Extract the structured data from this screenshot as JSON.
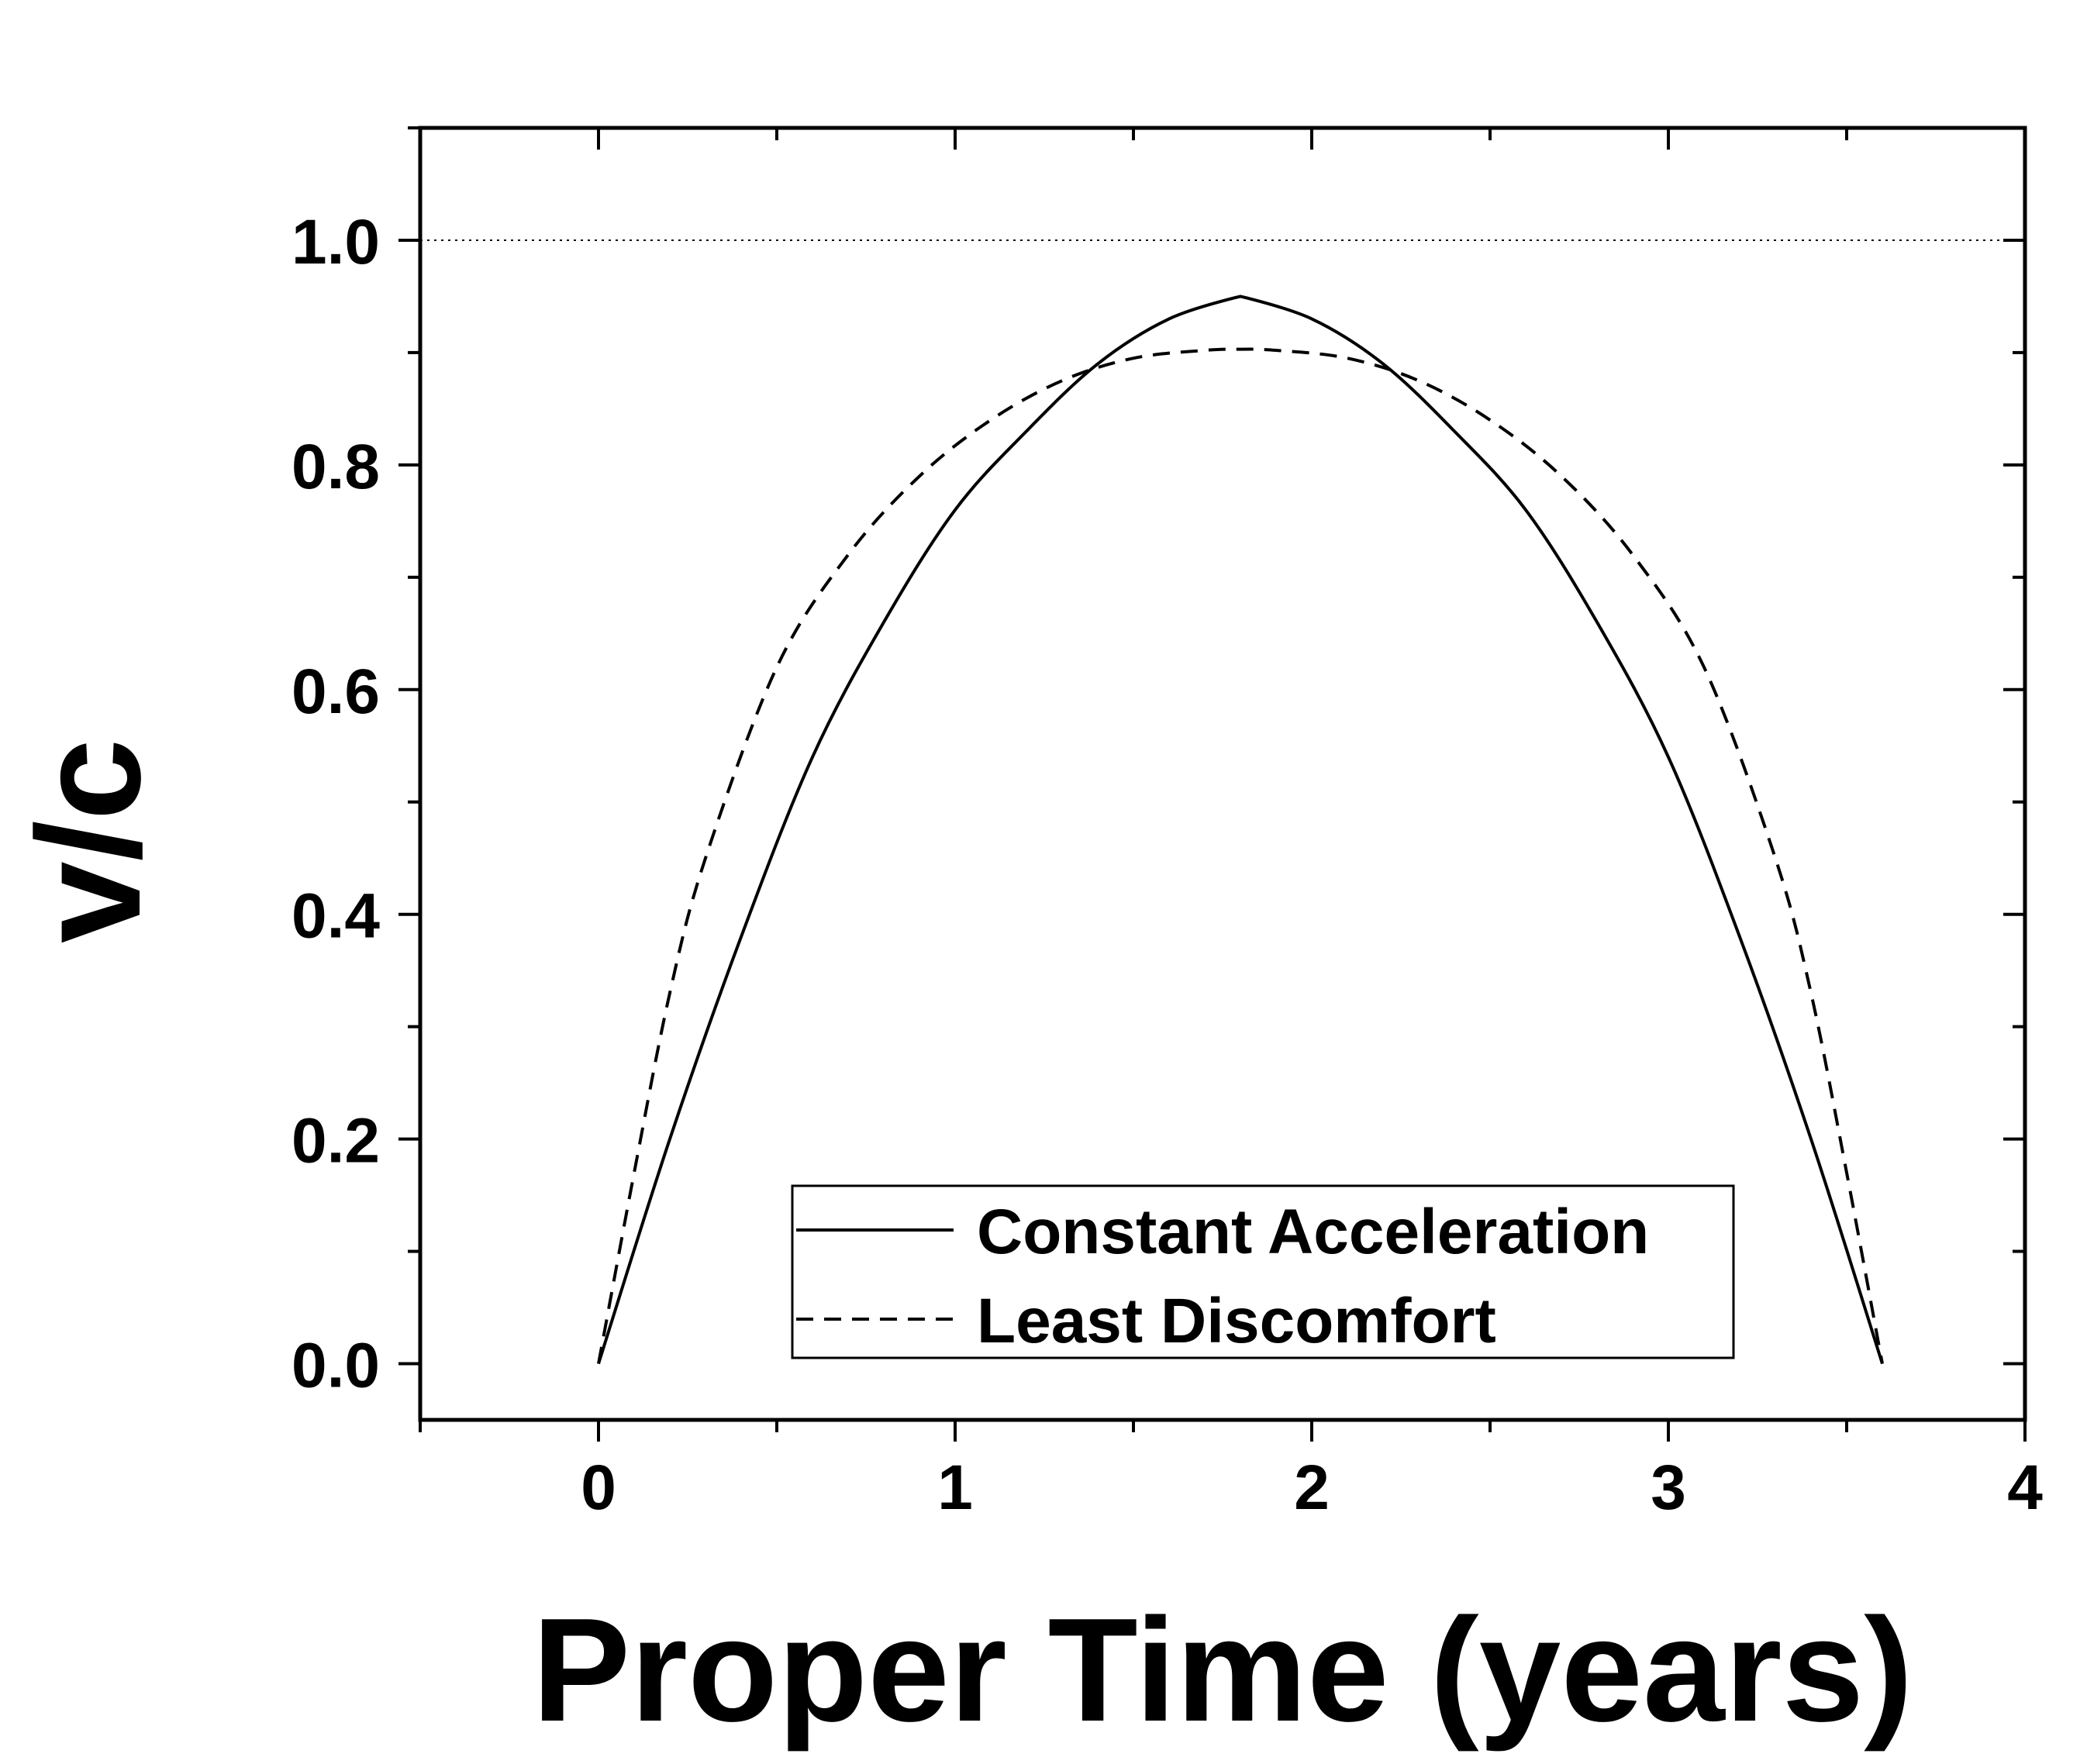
{
  "chart_data": {
    "type": "line",
    "xlabel": "Proper Time (years)",
    "ylabel": "v/c",
    "xlim": [
      -0.5,
      4
    ],
    "ylim": [
      -0.05,
      1.1
    ],
    "xticks": [
      0,
      1,
      2,
      3,
      4
    ],
    "xtick_labels": [
      "0",
      "1",
      "2",
      "3",
      "4"
    ],
    "yticks": [
      0.0,
      0.2,
      0.4,
      0.6,
      0.8,
      1.0
    ],
    "ytick_labels": [
      "0.0",
      "0.2",
      "0.4",
      "0.6",
      "0.8",
      "1.0"
    ],
    "reference_line": {
      "y": 1.0,
      "style": "dotted"
    },
    "legend_placement": "bottom-center",
    "series": [
      {
        "name": "Constant Acceleration",
        "style": "solid",
        "x": [
          0.0,
          0.2,
          0.4,
          0.6,
          0.8,
          1.0,
          1.2,
          1.4,
          1.6,
          1.8,
          2.0,
          2.2,
          2.4,
          2.6,
          2.8,
          3.0,
          3.2,
          3.4,
          3.6
        ],
        "y": [
          0.0,
          0.2,
          0.38,
          0.54,
          0.66,
          0.76,
          0.83,
          0.89,
          0.93,
          0.95,
          0.93,
          0.89,
          0.83,
          0.76,
          0.66,
          0.54,
          0.38,
          0.2,
          0.0
        ]
      },
      {
        "name": "Least Discomfort",
        "style": "dashed",
        "x": [
          0.0,
          0.1,
          0.2,
          0.3,
          0.5,
          0.7,
          0.9,
          1.1,
          1.3,
          1.5,
          1.7,
          1.8,
          1.9,
          2.1,
          2.3,
          2.5,
          2.7,
          2.9,
          3.1,
          3.3,
          3.4,
          3.5,
          3.6
        ],
        "y": [
          0.0,
          0.17,
          0.33,
          0.45,
          0.62,
          0.72,
          0.79,
          0.84,
          0.875,
          0.895,
          0.902,
          0.903,
          0.902,
          0.895,
          0.875,
          0.84,
          0.79,
          0.72,
          0.62,
          0.45,
          0.33,
          0.17,
          0.0
        ]
      }
    ]
  }
}
